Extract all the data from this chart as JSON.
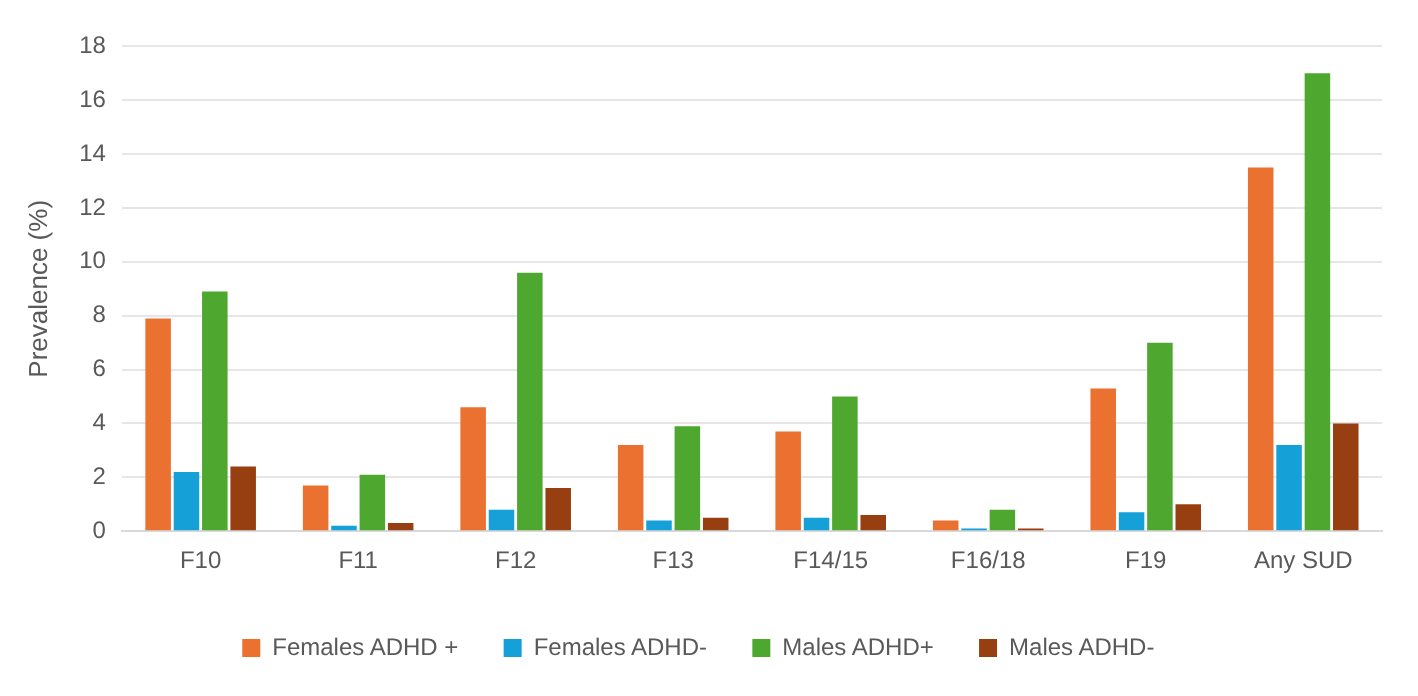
{
  "chart_data": {
    "type": "bar",
    "ylabel": "Prevalence (%)",
    "categories": [
      "F10",
      "F11",
      "F12",
      "F13",
      "F14/15",
      "F16/18",
      "F19",
      "Any SUD"
    ],
    "series": [
      {
        "name": "Females ADHD +",
        "color": "#ea7130",
        "values": [
          7.9,
          1.7,
          4.6,
          3.2,
          3.7,
          0.4,
          5.3,
          13.5
        ]
      },
      {
        "name": "Females ADHD-",
        "color": "#15a0d8",
        "values": [
          2.2,
          0.2,
          0.8,
          0.4,
          0.5,
          0.1,
          0.7,
          3.2
        ]
      },
      {
        "name": "Males ADHD+",
        "color": "#4ea72e",
        "values": [
          8.9,
          2.1,
          9.6,
          3.9,
          5.0,
          0.8,
          7.0,
          17.0
        ]
      },
      {
        "name": "Males ADHD-",
        "color": "#983f11",
        "values": [
          2.4,
          0.3,
          1.6,
          0.5,
          0.6,
          0.1,
          1.0,
          4.0
        ]
      }
    ],
    "ylim": [
      0,
      18
    ],
    "yticks": [
      0,
      2,
      4,
      6,
      8,
      10,
      12,
      14,
      16,
      18
    ],
    "grid": "y",
    "legend": "bottom"
  }
}
